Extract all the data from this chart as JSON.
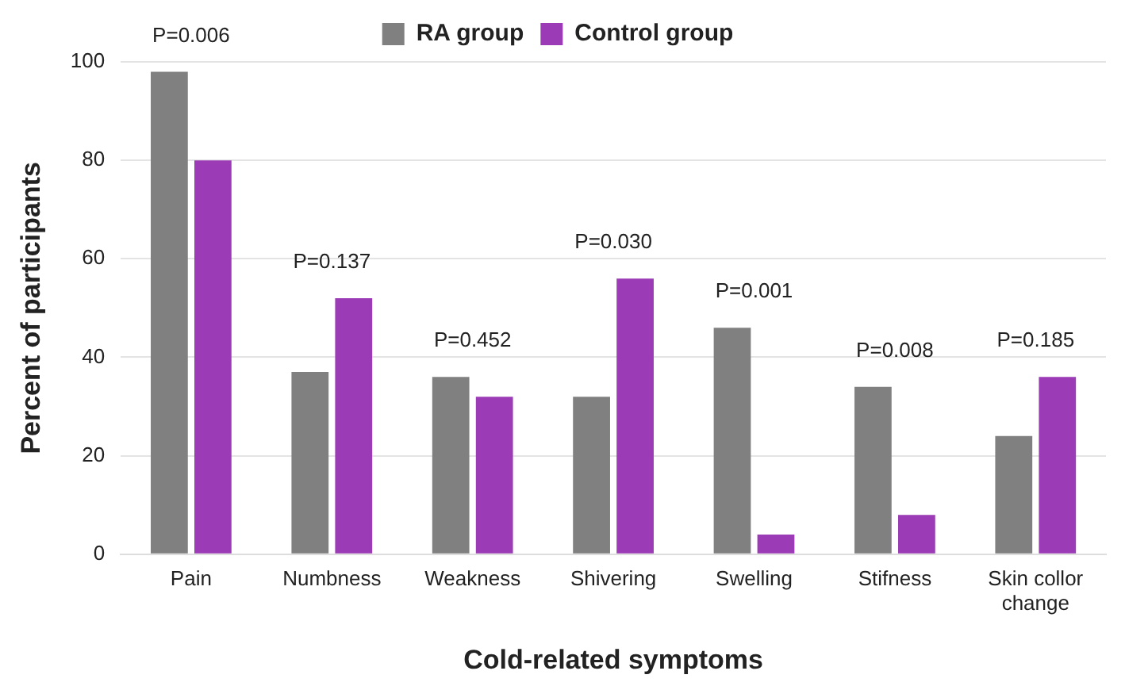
{
  "chart_data": {
    "type": "bar",
    "xlabel": "Cold-related symptoms",
    "ylabel": "Percent of participants",
    "categories": [
      "Pain",
      "Numbness",
      "Weakness",
      "Shivering",
      "Swelling",
      "Stifness",
      "Skin collor change"
    ],
    "series": [
      {
        "name": "RA group",
        "color": "#808080",
        "values": [
          98,
          37,
          36,
          32,
          46,
          34,
          24
        ]
      },
      {
        "name": "Control group",
        "color": "#9b3bb5",
        "values": [
          80,
          52,
          32,
          56,
          4,
          8,
          36
        ]
      }
    ],
    "ylim": [
      0,
      100
    ],
    "yticks": [
      0,
      20,
      40,
      60,
      80,
      100
    ],
    "grid": "y",
    "legend": "top",
    "annotations": [
      "P=0.006",
      "P=0.137",
      "P=0.452",
      "P=0.030",
      "P=0.001",
      "P=0.008",
      "P=0.185"
    ]
  }
}
